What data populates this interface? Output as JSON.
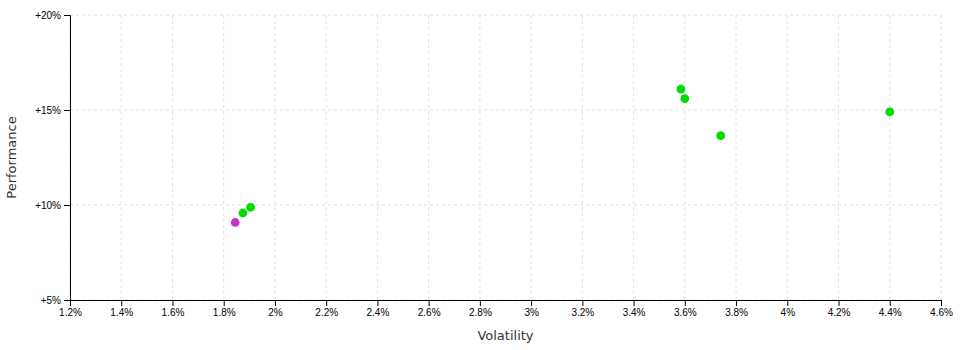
{
  "chart_data": {
    "type": "scatter",
    "xlabel": "Volatility",
    "ylabel": "Performance",
    "x": [
      0.01875,
      0.01905,
      0.01845,
      0.03585,
      0.036,
      0.0374,
      0.044
    ],
    "values": [
      0.0958,
      0.0988,
      0.0908,
      0.161,
      0.156,
      0.1365,
      0.149
    ],
    "colors": [
      "#00dd00",
      "#00dd00",
      "#cc33cc",
      "#00dd00",
      "#00dd00",
      "#00dd00",
      "#00dd00"
    ],
    "marker": "circle",
    "xlim": [
      0.012,
      0.046
    ],
    "ylim": [
      0.05,
      0.2
    ],
    "xticks": [
      {
        "value": 0.012,
        "label": "1.2%"
      },
      {
        "value": 0.014,
        "label": "1.4%"
      },
      {
        "value": 0.016,
        "label": "1.6%"
      },
      {
        "value": 0.018,
        "label": "1.8%"
      },
      {
        "value": 0.02,
        "label": "2%"
      },
      {
        "value": 0.022,
        "label": "2.2%"
      },
      {
        "value": 0.024,
        "label": "2.4%"
      },
      {
        "value": 0.026,
        "label": "2.6%"
      },
      {
        "value": 0.028,
        "label": "2.8%"
      },
      {
        "value": 0.03,
        "label": "3%"
      },
      {
        "value": 0.032,
        "label": "3.2%"
      },
      {
        "value": 0.034,
        "label": "3.4%"
      },
      {
        "value": 0.036,
        "label": "3.6%"
      },
      {
        "value": 0.038,
        "label": "3.8%"
      },
      {
        "value": 0.04,
        "label": "4%"
      },
      {
        "value": 0.042,
        "label": "4.2%"
      },
      {
        "value": 0.044,
        "label": "4.4%"
      },
      {
        "value": 0.046,
        "label": "4.6%"
      }
    ],
    "yticks": [
      {
        "value": 0.05,
        "label": "+5%"
      },
      {
        "value": 0.1,
        "label": "+10%"
      },
      {
        "value": 0.15,
        "label": "+15%"
      },
      {
        "value": 0.2,
        "label": "+20%"
      }
    ],
    "grid": true
  }
}
